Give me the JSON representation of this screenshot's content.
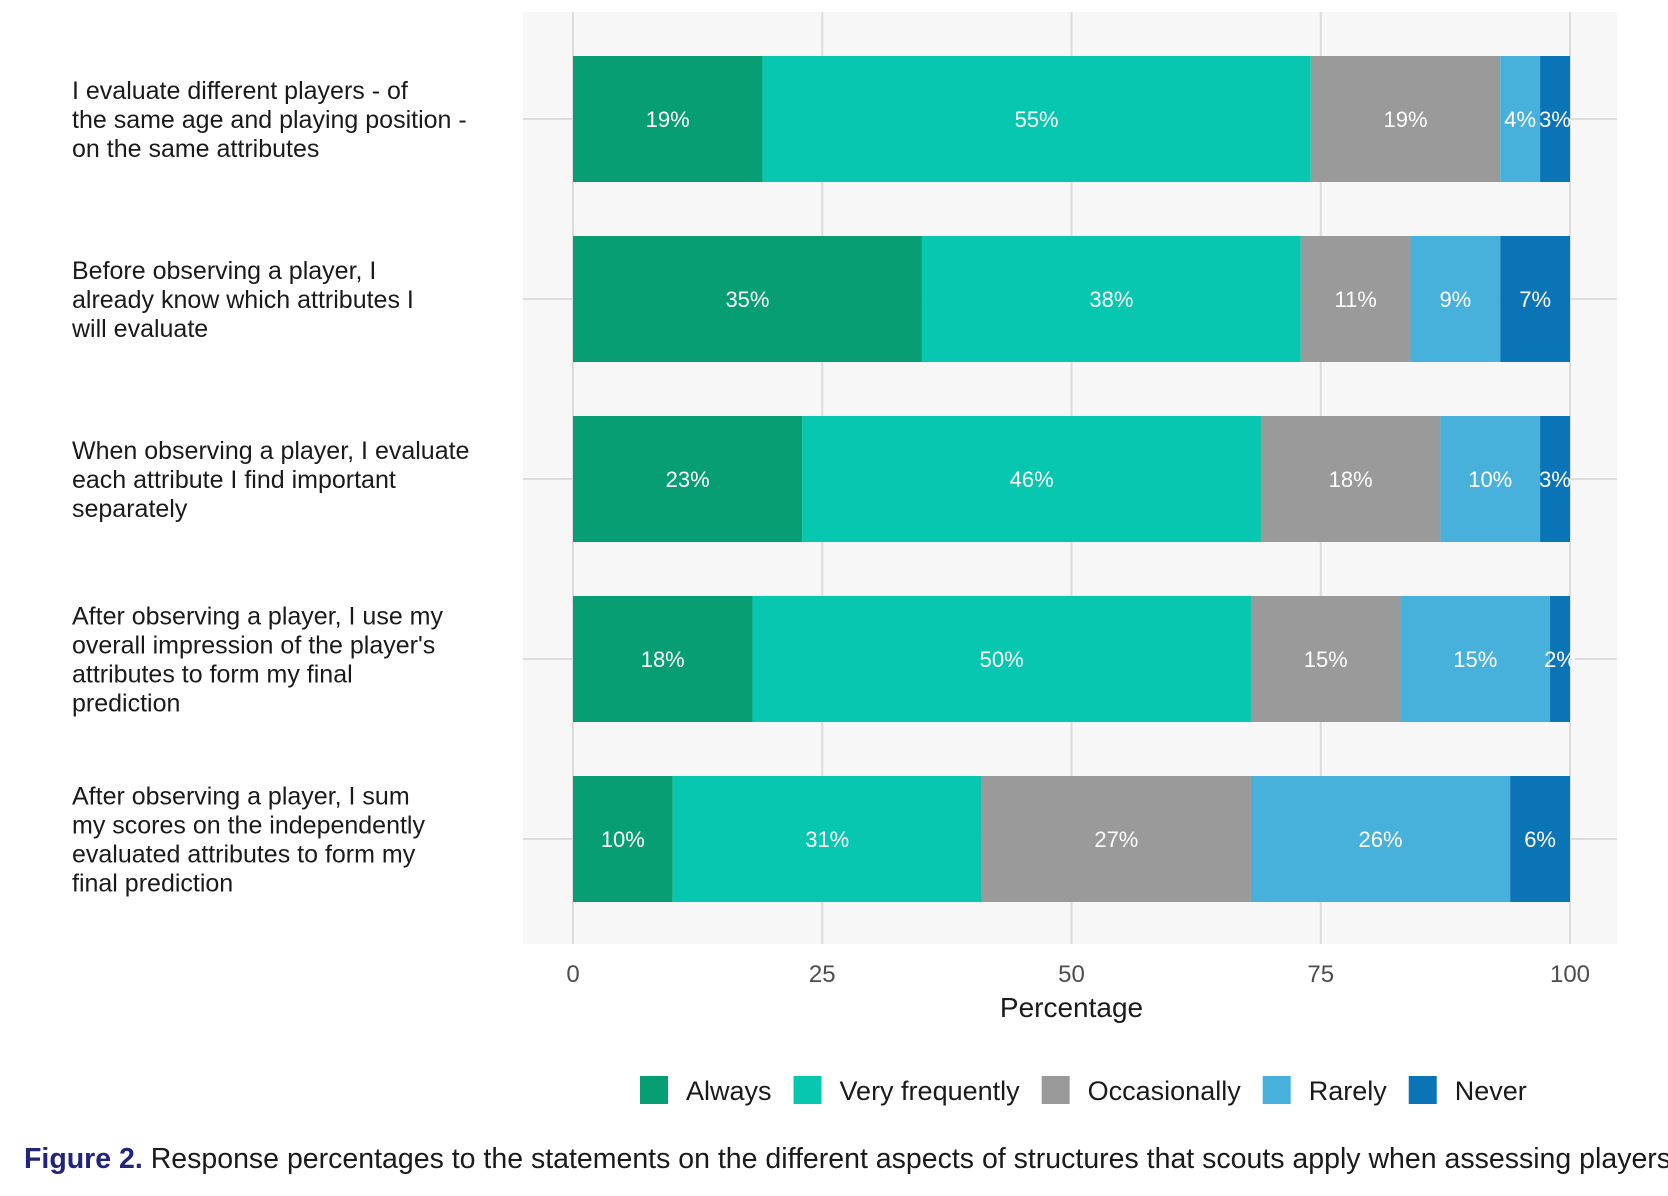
{
  "chart_data": {
    "type": "bar",
    "orientation": "horizontal",
    "stacked": true,
    "categories": [
      "I evaluate different players - of the same age and playing position - on the same attributes",
      "Before observing a player, I already know which attributes I will evaluate",
      "When observing a player, I evaluate each attribute I find important separately",
      "After observing a player, I use my overall impression of the player's attributes to form my final prediction",
      "After observing a player, I sum my scores on the independently evaluated attributes to form my final prediction"
    ],
    "category_lines": [
      [
        "I evaluate different players - of",
        "the same age and playing position -",
        "on the same attributes"
      ],
      [
        "Before observing a player, I",
        "already know which attributes I",
        "will evaluate"
      ],
      [
        "When observing a player, I evaluate",
        "each attribute I find important",
        "separately"
      ],
      [
        "After observing a player, I use my",
        "overall impression of the player's",
        "attributes to form my final",
        "prediction"
      ],
      [
        "After observing a player, I sum",
        "my scores on the independently",
        "evaluated attributes to form my",
        "final prediction"
      ]
    ],
    "series": [
      {
        "name": "Always",
        "color": "#079e73",
        "values": [
          19,
          35,
          23,
          18,
          10
        ]
      },
      {
        "name": "Very frequently",
        "color": "#07c7b0",
        "values": [
          55,
          38,
          46,
          50,
          31
        ]
      },
      {
        "name": "Occasionally",
        "color": "#9a9a9a",
        "values": [
          19,
          11,
          18,
          15,
          27
        ]
      },
      {
        "name": "Rarely",
        "color": "#47b1dc",
        "values": [
          4,
          9,
          10,
          15,
          26
        ]
      },
      {
        "name": "Never",
        "color": "#0a74b6",
        "values": [
          3,
          7,
          3,
          2,
          6
        ]
      }
    ],
    "x_ticks": [
      0,
      25,
      50,
      75,
      100
    ],
    "xlim": [
      0,
      100
    ],
    "xlabel": "Percentage",
    "ylabel": "",
    "grid": true,
    "legend_position": "bottom",
    "label_suffix": "%"
  },
  "caption": {
    "figure_number": "Figure 2.",
    "text": "Response percentages to the statements on the different aspects of structures that scouts apply when assessing players."
  }
}
